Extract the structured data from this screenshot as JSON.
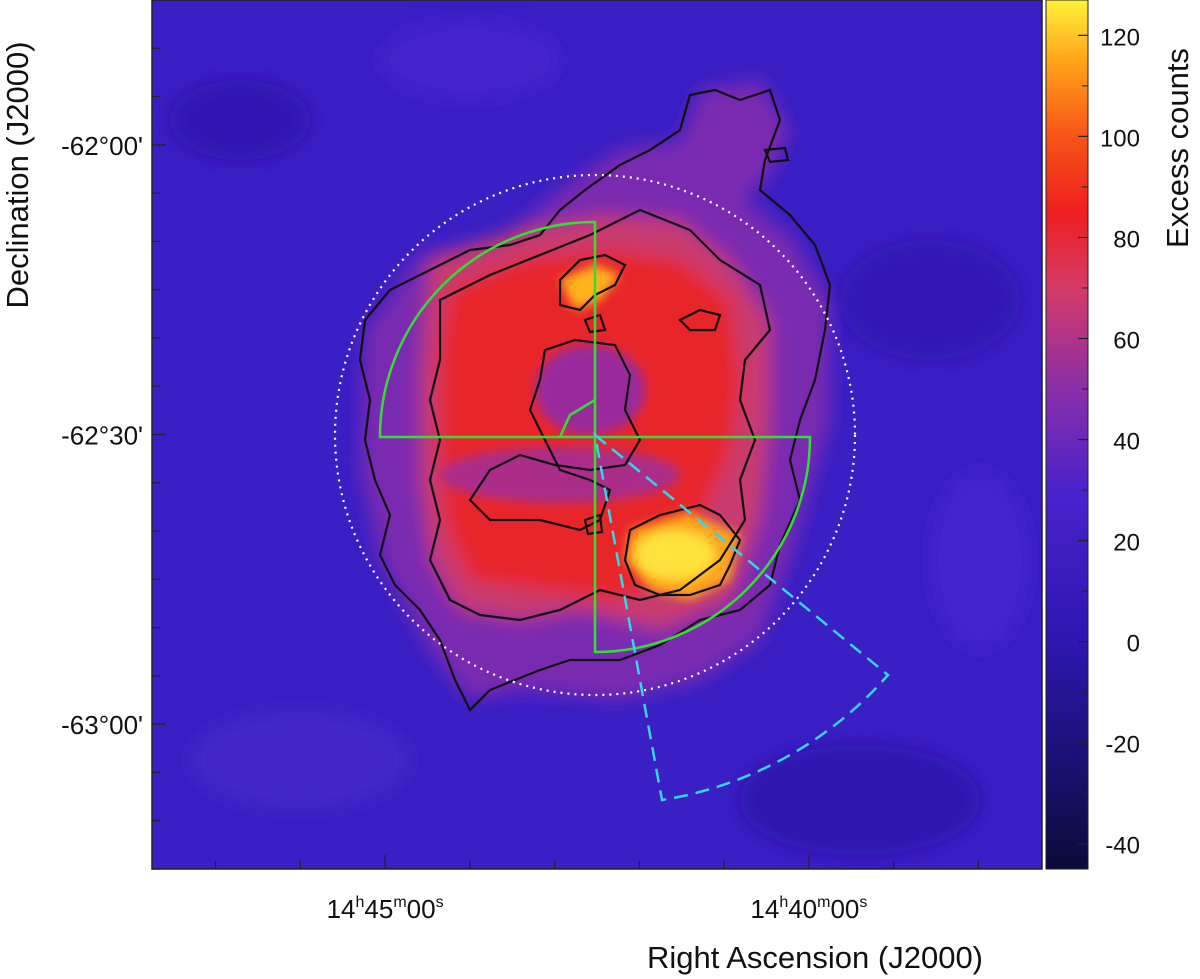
{
  "chart_data": {
    "type": "heatmap",
    "title": "",
    "xlabel": "Right Ascension (J2000)",
    "ylabel": "Declination (J2000)",
    "colorbar_label": "Excess counts",
    "x_ticks": [
      {
        "ra_min": 885.0,
        "h": "14",
        "m": "45",
        "s": "00"
      },
      {
        "ra_min": 880.0,
        "h": "14",
        "m": "40",
        "s": "00"
      }
    ],
    "x_range_ra_min": [
      887.75,
      877.25
    ],
    "y_ticks": [
      {
        "dec_arcmin": -3720,
        "label": "-62°00'"
      },
      {
        "dec_arcmin": -3750,
        "label": "-62°30'"
      },
      {
        "dec_arcmin": -3780,
        "label": "-63°00'"
      }
    ],
    "y_range_dec_arcmin": [
      -3795,
      -3705
    ],
    "colorbar_ticks": [
      120,
      100,
      80,
      60,
      40,
      20,
      0,
      -20,
      -40
    ],
    "colorbar_range": [
      -45,
      127
    ],
    "colors": {
      "background_low": "#3d20c8",
      "mid": "#d43c66",
      "high": "#e81f1f",
      "peak": "#ffd640",
      "contour": "#111111",
      "white_circle": "#ffffff",
      "green_region": "#33dd33",
      "cyan_region": "#33d6ea"
    },
    "colormap": [
      {
        "v": -45,
        "color": "#0a0a3a"
      },
      {
        "v": -25,
        "color": "#1a1070"
      },
      {
        "v": 0,
        "color": "#2e16b0"
      },
      {
        "v": 30,
        "color": "#4a22cc"
      },
      {
        "v": 50,
        "color": "#8a2ea8"
      },
      {
        "v": 70,
        "color": "#d43a68"
      },
      {
        "v": 85,
        "color": "#ee1f1f"
      },
      {
        "v": 100,
        "color": "#f75418"
      },
      {
        "v": 115,
        "color": "#ffa41a"
      },
      {
        "v": 127,
        "color": "#fff23a"
      }
    ],
    "grid": false
  }
}
